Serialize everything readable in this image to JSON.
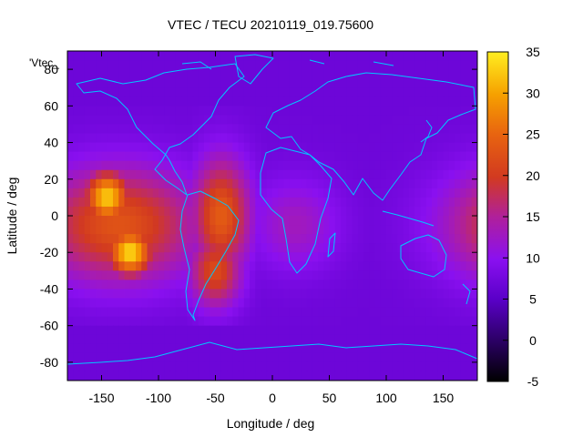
{
  "chart_data": {
    "type": "heatmap",
    "title": "VTEC / TECU 20210119_019.75600",
    "xlabel": "Longitude / deg",
    "ylabel": "Latitude / deg",
    "series_key_label": "'Vtec_",
    "xlim": [
      -180,
      180
    ],
    "ylim": [
      -90,
      90
    ],
    "x_ticks": [
      "-150",
      "-100",
      "-50",
      "0",
      "50",
      "100",
      "150"
    ],
    "y_ticks": [
      "-80",
      "-60",
      "-40",
      "-20",
      "0",
      "20",
      "40",
      "60",
      "80"
    ],
    "colorbar": {
      "range": [
        -5,
        35
      ],
      "ticks": [
        "-5",
        "0",
        "5",
        "10",
        "15",
        "20",
        "25",
        "30",
        "35"
      ],
      "palette": [
        "#000000",
        "#2a0062",
        "#5a00c8",
        "#8a10f0",
        "#b0209a",
        "#d23a20",
        "#e86410",
        "#f6a000",
        "#ffee20"
      ]
    },
    "features": [
      {
        "description": "background",
        "lon": 0,
        "lat": 0,
        "value": 7
      },
      {
        "description": "equatorial anomaly Pacific north crest",
        "lon": -145,
        "lat": 10,
        "value": 33
      },
      {
        "description": "equatorial anomaly Pacific south crest",
        "lon": -125,
        "lat": -20,
        "value": 34
      },
      {
        "description": "Pacific anomaly band",
        "lon": -135,
        "lat": -5,
        "value": 23
      },
      {
        "description": "South America north crest",
        "lon": -45,
        "lat": 0,
        "value": 24
      },
      {
        "description": "South America south crest",
        "lon": -50,
        "lat": -30,
        "value": 22
      },
      {
        "description": "Atlantic / West Africa",
        "lon": 20,
        "lat": -5,
        "value": 13
      },
      {
        "description": "Western Pacific date-line edge",
        "lon": 178,
        "lat": -8,
        "value": 15
      },
      {
        "description": "Antarctic low",
        "lon": 0,
        "lat": -85,
        "value": 5
      }
    ],
    "grid": false,
    "legend_placement": "top-left"
  }
}
